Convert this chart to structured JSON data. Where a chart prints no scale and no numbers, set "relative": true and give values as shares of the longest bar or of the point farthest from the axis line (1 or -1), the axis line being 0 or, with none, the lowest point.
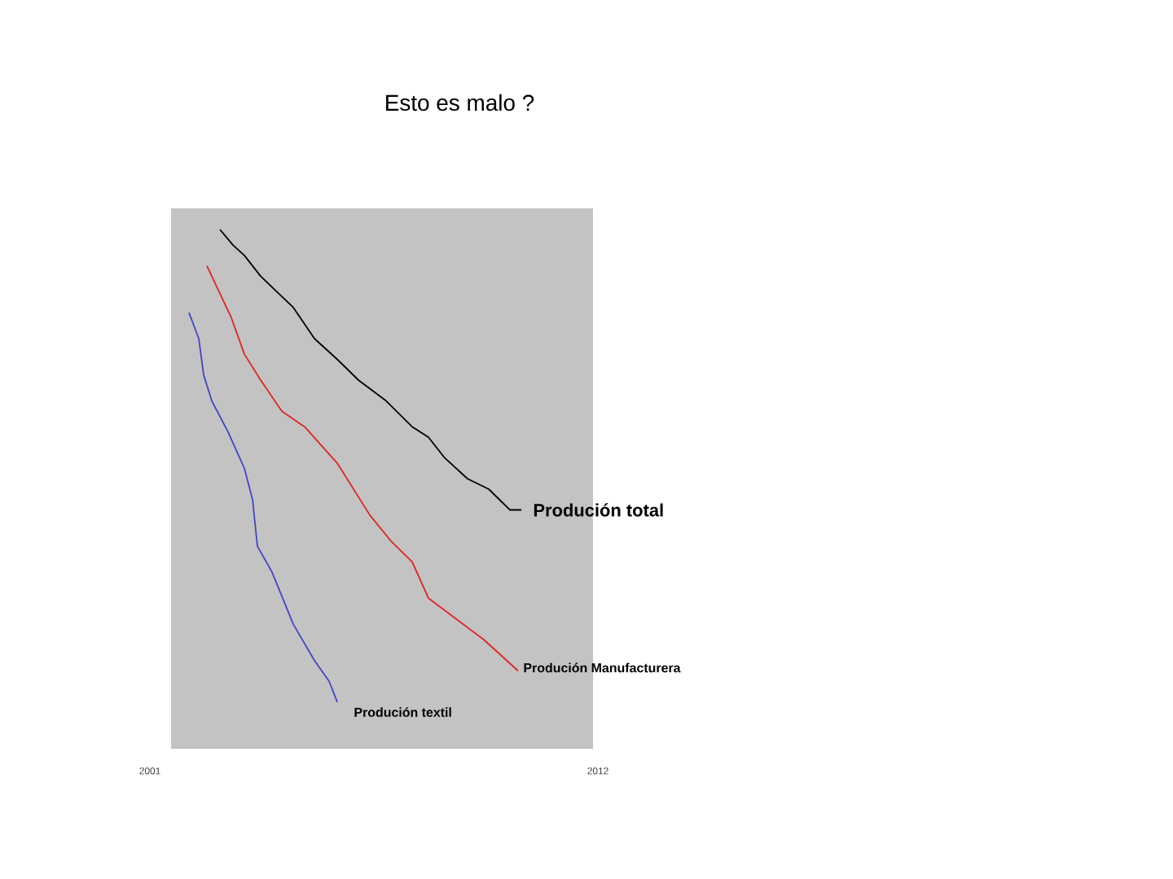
{
  "chart_data": {
    "type": "line",
    "title": "Esto es malo ?",
    "relative": true,
    "xlim": [
      2001,
      2012
    ],
    "xticks": [
      2001,
      2012
    ],
    "marker": "none",
    "line_style": "solid",
    "series": [
      {
        "name": "Produción total",
        "color": "#000000",
        "x": [
          2002.72,
          2003.04,
          2003.32,
          2003.72,
          2004.12,
          2004.52,
          2005.04,
          2005.6,
          2006.12,
          2006.8,
          2007.44,
          2007.84,
          2008.24,
          2008.8,
          2009.32,
          2009.84,
          2010.12
        ],
        "values": [
          1.0,
          0.97,
          0.95,
          0.91,
          0.88,
          0.85,
          0.79,
          0.75,
          0.71,
          0.67,
          0.62,
          0.6,
          0.56,
          0.52,
          0.5,
          0.46,
          0.46
        ]
      },
      {
        "name": "Produción Manufacturera",
        "color": "#e02424",
        "x": [
          2002.4,
          2002.64,
          2003.0,
          2003.32,
          2003.72,
          2004.24,
          2004.8,
          2005.6,
          2006.0,
          2006.4,
          2006.92,
          2007.44,
          2007.84,
          2008.52,
          2009.2,
          2010.04
        ],
        "values": [
          0.93,
          0.89,
          0.83,
          0.76,
          0.71,
          0.65,
          0.62,
          0.55,
          0.5,
          0.45,
          0.4,
          0.36,
          0.29,
          0.25,
          0.21,
          0.15
        ]
      },
      {
        "name": "Produción textil",
        "color": "#4444c4",
        "x": [
          2001.96,
          2002.2,
          2002.32,
          2002.52,
          2002.92,
          2003.32,
          2003.52,
          2003.64,
          2004.0,
          2004.52,
          2005.04,
          2005.4,
          2005.6
        ],
        "values": [
          0.84,
          0.79,
          0.72,
          0.67,
          0.61,
          0.54,
          0.48,
          0.39,
          0.34,
          0.24,
          0.17,
          0.13,
          0.09
        ]
      }
    ]
  }
}
